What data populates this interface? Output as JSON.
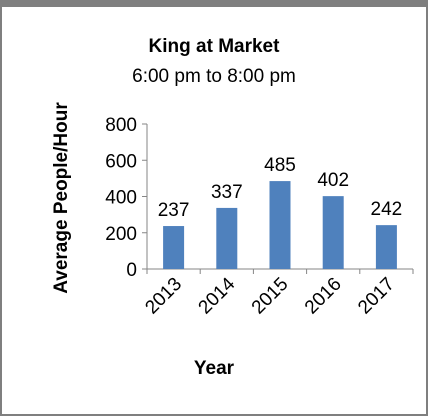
{
  "chart_data": {
    "type": "bar",
    "title": "King at Market",
    "subtitle": "6:00 pm to 8:00 pm",
    "categories": [
      "2013",
      "2014",
      "2015",
      "2016",
      "2017"
    ],
    "values": [
      237,
      337,
      485,
      402,
      242
    ],
    "data_labels": [
      "237",
      "337",
      "485",
      "402",
      "242"
    ],
    "xlabel": "Year",
    "ylabel": "Average People/Hour",
    "ylim": [
      0,
      800
    ],
    "yticks": [
      "0",
      "200",
      "400",
      "600",
      "800"
    ],
    "grid": false,
    "legend": "none",
    "bar_color": "#4f81bd"
  }
}
